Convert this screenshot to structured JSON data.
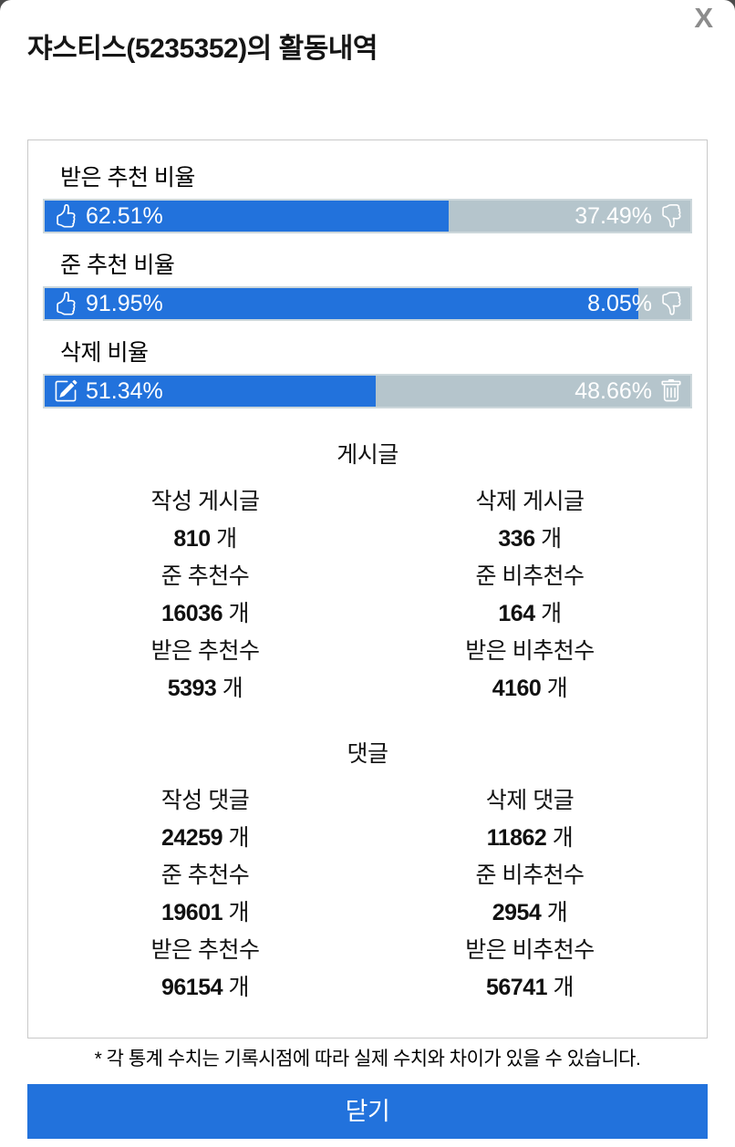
{
  "header": {
    "title": "쟈스티스(5235352)의 활동내역",
    "close_label": "X"
  },
  "ratios": [
    {
      "label": "받은 추천 비율",
      "left_pct_label": "62.51%",
      "right_pct_label": "37.49%",
      "left_value": 62.51,
      "right_value": 37.49,
      "left_icon": "thumbs-up",
      "right_icon": "thumbs-down"
    },
    {
      "label": "준 추천 비율",
      "left_pct_label": "91.95%",
      "right_pct_label": "8.05%",
      "left_value": 91.95,
      "right_value": 8.05,
      "left_icon": "thumbs-up",
      "right_icon": "thumbs-down"
    },
    {
      "label": "삭제 비율",
      "left_pct_label": "51.34%",
      "right_pct_label": "48.66%",
      "left_value": 51.34,
      "right_value": 48.66,
      "left_icon": "pencil-square",
      "right_icon": "trash"
    }
  ],
  "sections": [
    {
      "title": "게시글",
      "stats": [
        {
          "label": "작성 게시글",
          "value": "810",
          "unit": "개"
        },
        {
          "label": "삭제 게시글",
          "value": "336",
          "unit": "개"
        },
        {
          "label": "준 추천수",
          "value": "16036",
          "unit": "개"
        },
        {
          "label": "준 비추천수",
          "value": "164",
          "unit": "개"
        },
        {
          "label": "받은 추천수",
          "value": "5393",
          "unit": "개"
        },
        {
          "label": "받은 비추천수",
          "value": "4160",
          "unit": "개"
        }
      ]
    },
    {
      "title": "댓글",
      "stats": [
        {
          "label": "작성 댓글",
          "value": "24259",
          "unit": "개"
        },
        {
          "label": "삭제 댓글",
          "value": "11862",
          "unit": "개"
        },
        {
          "label": "준 추천수",
          "value": "19601",
          "unit": "개"
        },
        {
          "label": "준 비추천수",
          "value": "2954",
          "unit": "개"
        },
        {
          "label": "받은 추천수",
          "value": "96154",
          "unit": "개"
        },
        {
          "label": "받은 비추천수",
          "value": "56741",
          "unit": "개"
        }
      ]
    }
  ],
  "footer": {
    "note": "* 각 통계 수치는 기록시점에 따라 실제 수치와 차이가 있을 수 있습니다.",
    "close_button_label": "닫기"
  },
  "colors": {
    "accent_blue": "#2272dc",
    "bar_gray": "#b5c5cc",
    "bar_border": "#ccd7db",
    "card_border": "#c9c9c9",
    "close_x_gray": "#8c8c8c"
  }
}
